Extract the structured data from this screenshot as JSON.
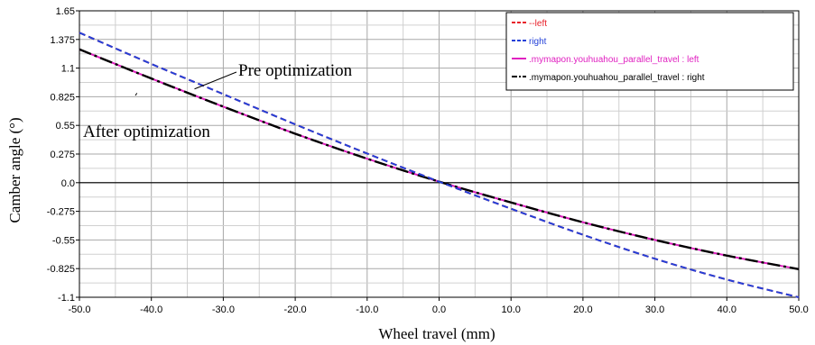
{
  "chart_data": {
    "type": "line",
    "title": "",
    "xlabel": "Wheel travel (mm)",
    "ylabel": "Camber angle (°)",
    "xlim": [
      -50,
      50
    ],
    "ylim": [
      -1.1,
      1.65
    ],
    "x_ticks": [
      -50,
      -40,
      -30,
      -20,
      -10,
      0,
      10,
      20,
      30,
      40,
      50
    ],
    "x_tick_labels": [
      "-50.0",
      "-40.0",
      "-30.0",
      "-20.0",
      "-10.0",
      "0.0",
      "10.0",
      "20.0",
      "30.0",
      "40.0",
      "50.0"
    ],
    "y_ticks": [
      1.65,
      1.375,
      1.1,
      0.825,
      0.55,
      0.275,
      0.0,
      -0.275,
      -0.55,
      -0.825,
      -1.1
    ],
    "y_tick_labels": [
      "1.65",
      "1.375",
      "1.1",
      "0.825",
      "0.55",
      "0.275",
      "0.0",
      "-0.275",
      "-0.55",
      "-0.825",
      "-1.1"
    ],
    "grid": true,
    "legend_position": "top-right",
    "series": [
      {
        "name": "--left",
        "color": "#e8202a",
        "dash": "dashed",
        "x": [
          -50,
          -40,
          -30,
          -20,
          -10,
          0,
          10,
          20,
          30,
          40,
          50
        ],
        "y": [
          1.44,
          1.14,
          0.85,
          0.56,
          0.28,
          0.01,
          -0.25,
          -0.5,
          -0.73,
          -0.93,
          -1.1
        ]
      },
      {
        "name": "right",
        "color": "#2340d8",
        "dash": "dashed",
        "x": [
          -50,
          -40,
          -30,
          -20,
          -10,
          0,
          10,
          20,
          30,
          40,
          50
        ],
        "y": [
          1.44,
          1.14,
          0.85,
          0.56,
          0.28,
          0.01,
          -0.25,
          -0.5,
          -0.73,
          -0.93,
          -1.1
        ]
      },
      {
        "name": ".mymapon.youhuahou_parallel_travel : left",
        "color": "#e020c0",
        "dash": "solid",
        "x": [
          -50,
          -40,
          -30,
          -20,
          -10,
          0,
          10,
          20,
          30,
          40,
          50
        ],
        "y": [
          1.28,
          1.0,
          0.73,
          0.47,
          0.23,
          0.01,
          -0.19,
          -0.38,
          -0.55,
          -0.7,
          -0.83
        ]
      },
      {
        "name": ".mymapon.youhuahou_parallel_travel : right",
        "color": "#000000",
        "dash": "dashdot",
        "x": [
          -50,
          -40,
          -30,
          -20,
          -10,
          0,
          10,
          20,
          30,
          40,
          50
        ],
        "y": [
          1.28,
          1.0,
          0.73,
          0.47,
          0.23,
          0.01,
          -0.19,
          -0.38,
          -0.55,
          -0.7,
          -0.83
        ]
      }
    ],
    "annotations": [
      {
        "text": "Pre optimization",
        "target": [
          -34,
          0.9
        ]
      },
      {
        "text": "After optimization",
        "target": [
          -42,
          0.86
        ]
      }
    ]
  }
}
